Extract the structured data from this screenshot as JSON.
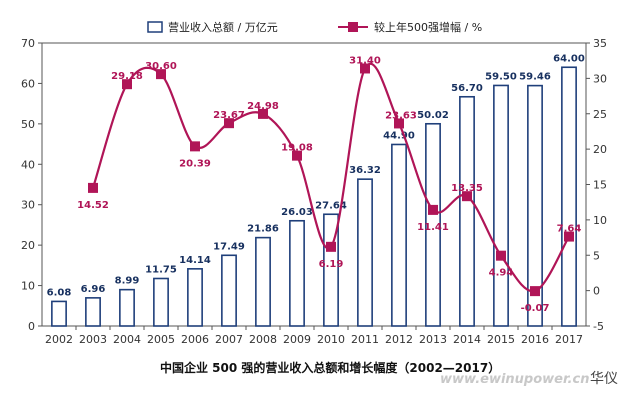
{
  "chart_data": {
    "type": "bar",
    "title": "",
    "caption": "中国企业 500 强的营业收入总额和增长幅度（2002—2017）",
    "categories": [
      "2002",
      "2003",
      "2004",
      "2005",
      "2006",
      "2007",
      "2008",
      "2009",
      "2010",
      "2011",
      "2012",
      "2013",
      "2014",
      "2015",
      "2016",
      "2017"
    ],
    "series": [
      {
        "name": "营业收入总额 / 万亿元",
        "type": "bar",
        "axis": "left",
        "color": "#1f3f7a",
        "values": [
          6.08,
          6.96,
          8.99,
          11.75,
          14.14,
          17.49,
          21.86,
          26.03,
          27.64,
          36.32,
          44.9,
          50.02,
          56.7,
          59.5,
          59.46,
          64.0
        ]
      },
      {
        "name": "较上年500强增幅 / %",
        "type": "line",
        "axis": "right",
        "color": "#b01557",
        "values": [
          null,
          14.52,
          29.18,
          30.6,
          20.39,
          23.67,
          24.98,
          19.08,
          6.19,
          31.4,
          23.63,
          11.41,
          13.35,
          4.94,
          -0.07,
          7.64
        ]
      }
    ],
    "bar_labels": [
      "6.08",
      "6.96",
      "8.99",
      "11.75",
      "14.14",
      "17.49",
      "21.86",
      "26.03",
      "27.64",
      "36.32",
      "44.90",
      "50.02",
      "56.70",
      "59.50",
      "59.46",
      "64.00"
    ],
    "line_labels": [
      "",
      "14.52",
      "29.18",
      "30.60",
      "20.39",
      "23.67",
      "24.98",
      "19.08",
      "6.19",
      "31.40",
      "23.63",
      "11.41",
      "13.35",
      "4.94",
      "-0.07",
      "7.64"
    ],
    "y_left": {
      "min": 0,
      "max": 70,
      "ticks": [
        0,
        10,
        20,
        30,
        40,
        50,
        60,
        70
      ]
    },
    "y_right": {
      "min": -5,
      "max": 35,
      "ticks": [
        -5,
        0,
        5,
        10,
        15,
        20,
        25,
        30,
        35
      ]
    },
    "legend_placement": "top",
    "grid": false
  },
  "watermark": "www.ewinupower.cn",
  "brand": "华仪"
}
